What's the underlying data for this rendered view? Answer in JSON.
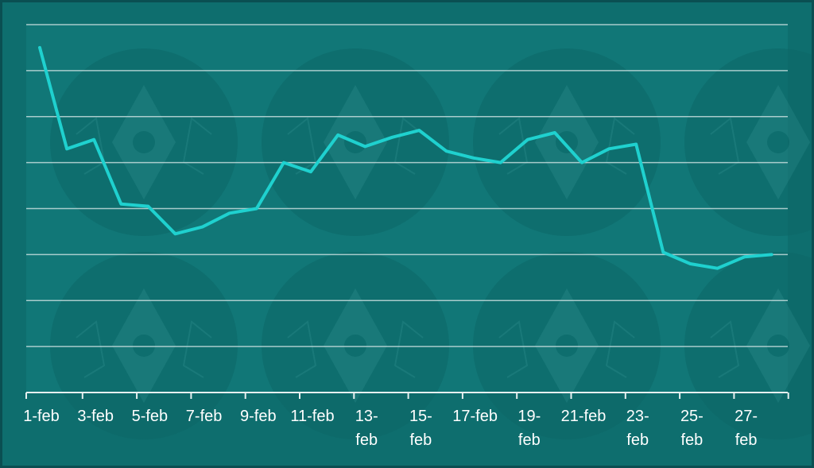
{
  "colors": {
    "frame": "#0a4f52",
    "background": "#0e6e6e",
    "plot_background": "#117777",
    "line": "#1fd1cf",
    "grid": "#cfe3e3",
    "axis": "#e6f0f0",
    "label": "#ffffff",
    "watermark": "#0d6767"
  },
  "chart_data": {
    "type": "line",
    "grid": true,
    "legend": "none",
    "y_ticks_labeled": false,
    "ylim": [
      0,
      8
    ],
    "x": [
      "1-feb",
      "2-feb",
      "3-feb",
      "4-feb",
      "5-feb",
      "6-feb",
      "7-feb",
      "8-feb",
      "9-feb",
      "10-feb",
      "11-feb",
      "12-feb",
      "13-feb",
      "14-feb",
      "15-feb",
      "16-feb",
      "17-feb",
      "18-feb",
      "19-feb",
      "20-feb",
      "21-feb",
      "22-feb",
      "23-feb",
      "24-feb",
      "25-feb",
      "26-feb",
      "27-feb",
      "28-feb"
    ],
    "tick_labels": [
      {
        "index": 0,
        "lines": [
          "1-feb"
        ]
      },
      {
        "index": 2,
        "lines": [
          "3-feb"
        ]
      },
      {
        "index": 4,
        "lines": [
          "5-feb"
        ]
      },
      {
        "index": 6,
        "lines": [
          "7-feb"
        ]
      },
      {
        "index": 8,
        "lines": [
          "9-feb"
        ]
      },
      {
        "index": 10,
        "lines": [
          "11-feb"
        ]
      },
      {
        "index": 12,
        "lines": [
          "13-",
          "feb"
        ]
      },
      {
        "index": 14,
        "lines": [
          "15-",
          "feb"
        ]
      },
      {
        "index": 16,
        "lines": [
          "17-feb"
        ]
      },
      {
        "index": 18,
        "lines": [
          "19-",
          "feb"
        ]
      },
      {
        "index": 20,
        "lines": [
          "21-feb"
        ]
      },
      {
        "index": 22,
        "lines": [
          "23-",
          "feb"
        ]
      },
      {
        "index": 24,
        "lines": [
          "25-",
          "feb"
        ]
      },
      {
        "index": 26,
        "lines": [
          "27-",
          "feb"
        ]
      }
    ],
    "series": [
      {
        "values": [
          7.5,
          5.3,
          5.5,
          4.1,
          4.05,
          3.45,
          3.6,
          3.9,
          4.0,
          5.0,
          4.8,
          5.6,
          5.35,
          5.55,
          5.7,
          5.25,
          5.1,
          5.0,
          5.5,
          5.65,
          5.0,
          5.3,
          5.4,
          3.05,
          2.8,
          2.7,
          2.95,
          3.0
        ]
      }
    ]
  }
}
